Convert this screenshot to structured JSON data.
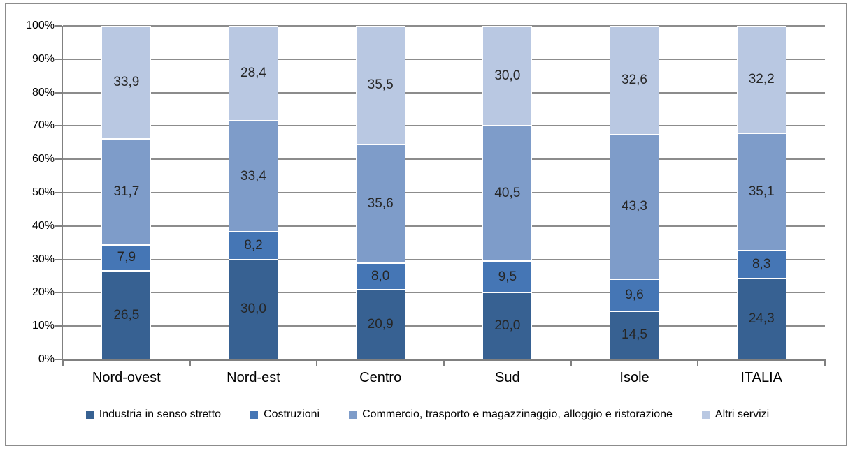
{
  "chart_data": {
    "type": "bar",
    "stacked": true,
    "units": "percent",
    "title": "",
    "xlabel": "",
    "ylabel": "",
    "grid": true,
    "legend_position": "bottom",
    "categories": [
      "Nord-ovest",
      "Nord-est",
      "Centro",
      "Sud",
      "Isole",
      "ITALIA"
    ],
    "series": [
      {
        "name": "Industria in senso stretto",
        "color": "#376192",
        "values": [
          26.5,
          30.0,
          20.9,
          20.0,
          14.5,
          24.3
        ],
        "labels": [
          "26,5",
          "30,0",
          "20,9",
          "20,0",
          "14,5",
          "24,3"
        ]
      },
      {
        "name": "Costruzioni",
        "color": "#4576B5",
        "values": [
          7.9,
          8.2,
          8.0,
          9.5,
          9.6,
          8.3
        ],
        "labels": [
          "7,9",
          "8,2",
          "8,0",
          "9,5",
          "9,6",
          "8,3"
        ]
      },
      {
        "name": "Commercio, trasporto e magazzinaggio, alloggio e ristorazione",
        "color": "#7E9CC9",
        "values": [
          31.7,
          33.4,
          35.6,
          40.5,
          43.3,
          35.1
        ],
        "labels": [
          "31,7",
          "33,4",
          "35,6",
          "40,5",
          "43,3",
          "35,1"
        ]
      },
      {
        "name": "Altri servizi",
        "color": "#B9C8E2",
        "values": [
          33.9,
          28.4,
          35.5,
          30.0,
          32.6,
          32.2
        ],
        "labels": [
          "33,9",
          "28,4",
          "35,5",
          "30,0",
          "32,6",
          "32,2"
        ]
      }
    ],
    "y_axis": {
      "min": 0,
      "max": 100,
      "tick_step": 10,
      "ticks": [
        "0%",
        "10%",
        "20%",
        "30%",
        "40%",
        "50%",
        "60%",
        "70%",
        "80%",
        "90%",
        "100%"
      ]
    },
    "style": {
      "gridline_color": "#8C8C8C",
      "axis_color": "#808080",
      "frame_border_color": "#8C8C8C",
      "data_label_color": "#262626",
      "axis_text_color": "#000000",
      "background": "#FFFFFF"
    }
  }
}
